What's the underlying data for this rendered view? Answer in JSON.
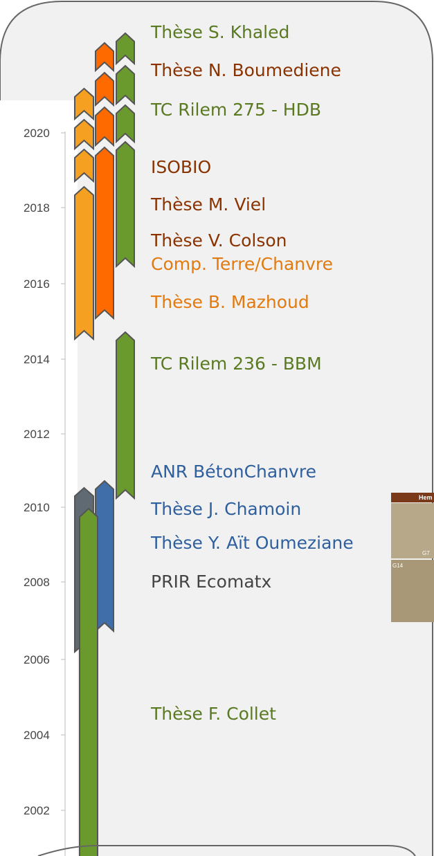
{
  "axis": {
    "years": [
      "2020",
      "2018",
      "2016",
      "2014",
      "2012",
      "2010",
      "2008",
      "2006",
      "2004",
      "2002"
    ]
  },
  "projects": [
    "Thèse S. Khaled",
    "Thèse N. Boumediene",
    "TC Rilem 275 - HDB",
    "ISOBIO",
    "Thèse M. Viel",
    "Thèse V. Colson",
    "Comp. Terre/Chanvre",
    "Thèse B. Mazhoud",
    "TC Rilem 236 - BBM",
    "ANR BétonChanvre",
    "Thèse J. Chamoin",
    "Thèse Y. Aït Oumeziane",
    "PRIR Ecomatx",
    "Thèse F. Collet"
  ],
  "photo": {
    "header": "Hem",
    "labels": [
      "G7",
      "G14"
    ]
  }
}
